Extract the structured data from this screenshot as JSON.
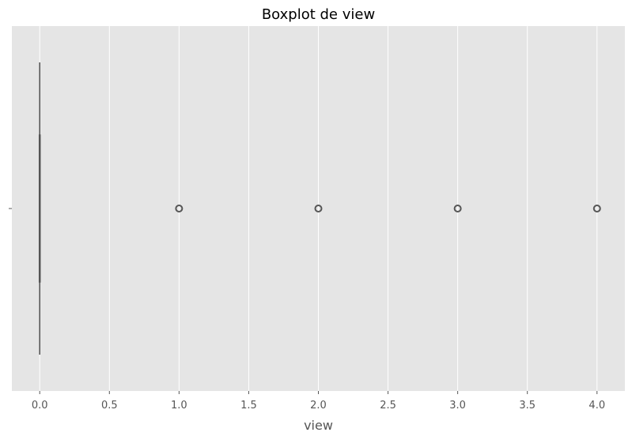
{
  "chart_data": {
    "type": "boxplot",
    "orientation": "horizontal",
    "title": "Boxplot de view",
    "xlabel": "view",
    "ylabel": "",
    "xlim": [
      -0.2,
      4.2
    ],
    "x_ticks": [
      0.0,
      0.5,
      1.0,
      1.5,
      2.0,
      2.5,
      3.0,
      3.5,
      4.0
    ],
    "x_tick_labels": [
      "0.0",
      "0.5",
      "1.0",
      "1.5",
      "2.0",
      "2.5",
      "3.0",
      "3.5",
      "4.0"
    ],
    "y_tick_labels": [
      ""
    ],
    "grid": true,
    "boxes": [
      {
        "min": 0,
        "q1": 0,
        "median": 0,
        "q3": 0,
        "max": 0,
        "outliers": [
          1,
          2,
          3,
          4
        ]
      }
    ],
    "colors": {
      "panel_background": "#e5e5e5",
      "grid": "#ffffff",
      "box_line": "#555555",
      "outlier_edge": "#555555",
      "tick_color": "#555555",
      "title_color": "#000000"
    }
  }
}
